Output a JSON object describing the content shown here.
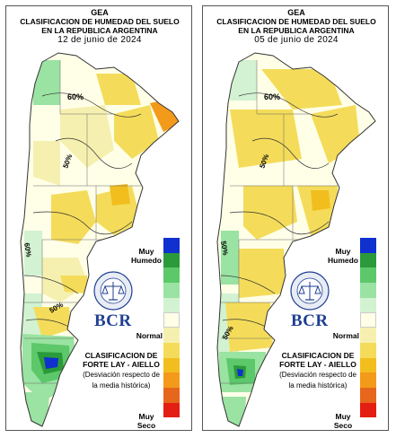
{
  "panels": [
    {
      "id": "left",
      "org": "GEA",
      "title_line1": "CLASIFICACION DE HUMEDAD DEL SUELO",
      "title_line2": "EN LA REPUBLICA ARGENTINA",
      "date": "12 de junio de 2024",
      "contour_label_pct": "60%",
      "contour_labels": [
        "60%",
        "50%",
        "60%",
        "50%"
      ]
    },
    {
      "id": "right",
      "org": "GEA",
      "title_line1": "CLASIFICACION DE HUMEDAD DEL SUELO",
      "title_line2": "EN LA REPUBLICA ARGENTINA",
      "date": "05 de junio de 2024",
      "contour_label_pct": "60%",
      "contour_labels": [
        "60%",
        "50%",
        "50%",
        "50%"
      ]
    }
  ],
  "legend": {
    "top_label_line1": "Muy",
    "top_label_line2": "Humedo",
    "middle_label": "Normal",
    "bottom_label_line1": "Muy",
    "bottom_label_line2": "Seco",
    "colors": [
      "#1030d0",
      "#2a9a3a",
      "#5cc86a",
      "#9ae3a2",
      "#d2f2d2",
      "#ffffe8",
      "#f6f0b0",
      "#f4dc5a",
      "#f2be1e",
      "#f39a1a",
      "#e6661c",
      "#e41e12"
    ]
  },
  "branding": {
    "seal_text": "BOLSA DE COMERCIO DE ROSARIO",
    "logo": "BCR",
    "classification_line1": "CLASIFICACION DE",
    "classification_line2": "FORTE LAY - AIELLO",
    "note_line1": "(Desviación respecto de",
    "note_line2": "la media histórica)"
  }
}
